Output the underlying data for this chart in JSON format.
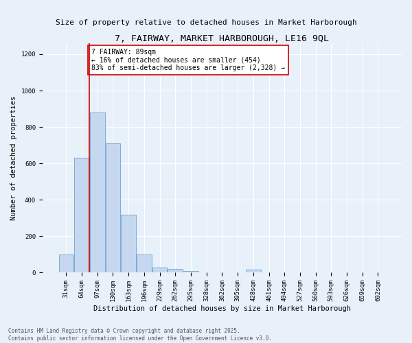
{
  "title": "7, FAIRWAY, MARKET HARBOROUGH, LE16 9QL",
  "subtitle": "Size of property relative to detached houses in Market Harborough",
  "xlabel": "Distribution of detached houses by size in Market Harborough",
  "ylabel": "Number of detached properties",
  "bar_color": "#c5d8f0",
  "bar_edge_color": "#7aadd4",
  "background_color": "#e8f0fa",
  "grid_color": "#ffffff",
  "categories": [
    "31sqm",
    "64sqm",
    "97sqm",
    "130sqm",
    "163sqm",
    "196sqm",
    "229sqm",
    "262sqm",
    "295sqm",
    "328sqm",
    "362sqm",
    "395sqm",
    "428sqm",
    "461sqm",
    "494sqm",
    "527sqm",
    "560sqm",
    "593sqm",
    "626sqm",
    "659sqm",
    "692sqm"
  ],
  "values": [
    100,
    630,
    880,
    710,
    320,
    100,
    30,
    20,
    10,
    0,
    0,
    0,
    15,
    0,
    0,
    0,
    0,
    0,
    0,
    0,
    0
  ],
  "ylim": [
    0,
    1260
  ],
  "yticks": [
    0,
    200,
    400,
    600,
    800,
    1000,
    1200
  ],
  "vline_x_index": 1,
  "bar_width": 0.95,
  "vline_color": "#cc0000",
  "annotation_text": "7 FAIRWAY: 89sqm\n← 16% of detached houses are smaller (454)\n83% of semi-detached houses are larger (2,328) →",
  "annotation_box_color": "#ffffff",
  "annotation_box_edge": "#cc0000",
  "footer_text": "Contains HM Land Registry data © Crown copyright and database right 2025.\nContains public sector information licensed under the Open Government Licence v3.0.",
  "title_fontsize": 9.5,
  "subtitle_fontsize": 8,
  "xlabel_fontsize": 7.5,
  "ylabel_fontsize": 7.5,
  "tick_fontsize": 6.5,
  "annotation_fontsize": 7,
  "footer_fontsize": 5.5
}
